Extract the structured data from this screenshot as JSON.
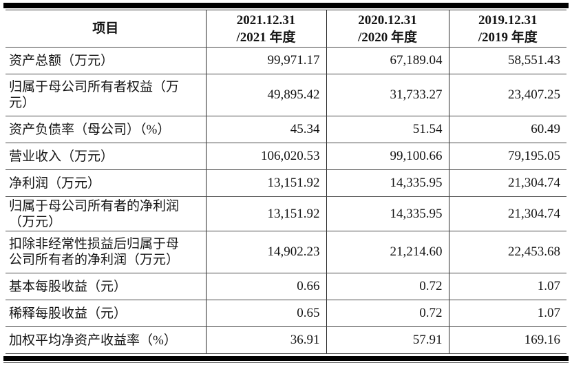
{
  "document": {
    "table": {
      "header": {
        "item": "项目",
        "periods": [
          {
            "date": "2021.12.31",
            "period": "/2021 年度"
          },
          {
            "date": "2020.12.31",
            "period": "/2020 年度"
          },
          {
            "date": "2019.12.31",
            "period": "/2019 年度"
          }
        ]
      },
      "rows": [
        {
          "label": "资产总额（万元）",
          "values": [
            "99,971.17",
            "67,189.04",
            "58,551.43"
          ]
        },
        {
          "label": "归属于母公司所有者权益（万\n元）",
          "values": [
            "49,895.42",
            "31,733.27",
            "23,407.25"
          ]
        },
        {
          "label": "资产负债率（母公司）（%）",
          "values": [
            "45.34",
            "51.54",
            "60.49"
          ]
        },
        {
          "label": "营业收入（万元）",
          "values": [
            "106,020.53",
            "99,100.66",
            "79,195.05"
          ]
        },
        {
          "label": "净利润（万元）",
          "values": [
            "13,151.92",
            "14,335.95",
            "21,304.74"
          ]
        },
        {
          "label": "归属于母公司所有者的净利润\n（万元）",
          "values": [
            "13,151.92",
            "14,335.95",
            "21,304.74"
          ]
        },
        {
          "label": "扣除非经常性损益后归属于母\n公司所有者的净利润（万元）",
          "values": [
            "14,902.23",
            "21,214.60",
            "22,453.68"
          ]
        },
        {
          "label": "基本每股收益（元）",
          "values": [
            "0.66",
            "0.72",
            "1.07"
          ]
        },
        {
          "label": "稀释每股收益（元）",
          "values": [
            "0.65",
            "0.72",
            "1.07"
          ]
        },
        {
          "label": "加权平均净资产收益率（%）",
          "values": [
            "36.91",
            "57.91",
            "169.16"
          ]
        }
      ]
    },
    "colors": {
      "background": "#ffffff",
      "text": "#141414",
      "rule_thick": "#000000",
      "rule_thin": "#4a4a4a",
      "divider": "#262626"
    }
  }
}
